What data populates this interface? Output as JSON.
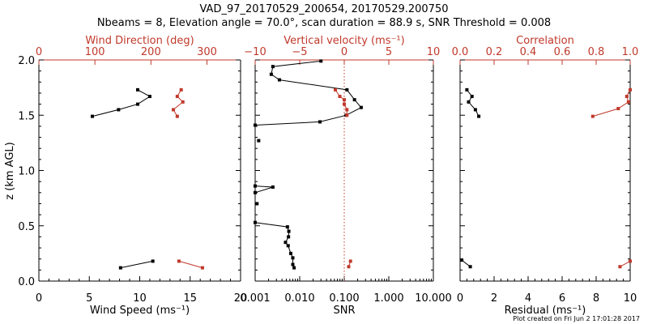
{
  "title_line1": "VAD_97_20170529_200654, 20170529.200750",
  "title_line2": "Nbeams = 8, Elevation angle = 70.0°, scan duration = 88.9 s, SNR Threshold = 0.008",
  "footer": "Plot created on Fri Jun  2 17:01:28 2017",
  "colors": {
    "primary": "#000000",
    "secondary": "#c0392b"
  },
  "chart_data": [
    {
      "type": "line",
      "title": "",
      "ylabel": "z (km AGL)",
      "ylim": [
        0,
        2
      ],
      "yticks": [
        "0.0",
        "0.5",
        "1.0",
        "1.5",
        "2.0"
      ],
      "xlabel": "Wind Speed (ms⁻¹)",
      "xlim": [
        0,
        20
      ],
      "xticks": [
        "0",
        "5",
        "10",
        "15",
        "20"
      ],
      "top_xlabel": "Wind Direction (deg)",
      "top_xlim": [
        0,
        360
      ],
      "top_xticks": [
        "0",
        "100",
        "200",
        "300"
      ],
      "series": [
        {
          "axis": "bottom",
          "color": "#000000",
          "segments": [
            {
              "x": [
                5.3,
                7.9,
                9.8,
                11.0,
                9.8
              ],
              "y": [
                1.49,
                1.55,
                1.6,
                1.67,
                1.73
              ]
            },
            {
              "x": [
                8.1,
                11.3
              ],
              "y": [
                0.12,
                0.18
              ]
            }
          ]
        },
        {
          "axis": "top",
          "color": "#c0392b",
          "segments": [
            {
              "x": [
                247,
                240,
                257,
                247,
                254
              ],
              "y": [
                1.49,
                1.55,
                1.62,
                1.67,
                1.73
              ]
            },
            {
              "x": [
                250,
                292
              ],
              "y": [
                0.18,
                0.12
              ]
            }
          ]
        }
      ]
    },
    {
      "type": "line",
      "title": "",
      "xlabel": "SNR",
      "xscale": "log",
      "xlim": [
        0.001,
        10
      ],
      "xticks": [
        "0.001",
        "0.010",
        "0.100",
        "1.000",
        "10.000"
      ],
      "top_xlabel": "Vertical velocity (ms⁻¹)",
      "top_xlim": [
        -10,
        10
      ],
      "top_xticks": [
        "−10",
        "−5",
        "0",
        "5",
        "10"
      ],
      "top_reference_line": 0,
      "ylim": [
        0,
        2
      ],
      "series": [
        {
          "axis": "bottom",
          "color": "#000000",
          "segments": [
            {
              "x": [
                0.03,
                0.0025,
                0.0023,
                0.0035,
                0.115,
                0.17,
                0.24,
                0.11,
                0.0285,
                0.001
              ],
              "y": [
                1.99,
                1.94,
                1.87,
                1.82,
                1.73,
                1.64,
                1.57,
                1.5,
                1.44,
                1.41
              ]
            },
            {
              "x": [
                0.0012
              ],
              "y": [
                1.27
              ]
            },
            {
              "x": [
                0.001,
                0.0025,
                0.001
              ],
              "y": [
                0.86,
                0.85,
                0.8
              ]
            },
            {
              "x": [
                0.0011
              ],
              "y": [
                0.7
              ]
            },
            {
              "x": [
                0.001,
                0.0053,
                0.0057,
                0.0056,
                0.0048,
                0.0055,
                0.0063,
                0.007,
                0.007,
                0.0075
              ],
              "y": [
                0.53,
                0.49,
                0.45,
                0.4,
                0.35,
                0.32,
                0.25,
                0.21,
                0.15,
                0.12
              ]
            }
          ]
        },
        {
          "axis": "top",
          "color": "#c0392b",
          "segments": [
            {
              "x": [
                -1.0,
                -0.5,
                0.0,
                0.0,
                0.3,
                0.3
              ],
              "y": [
                1.73,
                1.67,
                1.64,
                1.6,
                1.55,
                1.5
              ]
            },
            {
              "x": [
                0.7,
                0.5
              ],
              "y": [
                0.18,
                0.13
              ]
            }
          ]
        }
      ]
    },
    {
      "type": "line",
      "title": "",
      "xlabel": "Residual (ms⁻¹)",
      "xlim": [
        0,
        10
      ],
      "xticks": [
        "0",
        "2",
        "4",
        "6",
        "8",
        "10"
      ],
      "top_xlabel": "Correlation",
      "top_xlim": [
        0,
        1
      ],
      "top_xticks": [
        "0.0",
        "0.2",
        "0.4",
        "0.6",
        "0.8",
        "1.0"
      ],
      "ylim": [
        0,
        2
      ],
      "series": [
        {
          "axis": "bottom",
          "color": "#000000",
          "segments": [
            {
              "x": [
                0.4,
                0.7,
                0.5,
                0.9,
                1.1
              ],
              "y": [
                1.73,
                1.67,
                1.62,
                1.55,
                1.49
              ]
            },
            {
              "x": [
                0.1,
                0.6
              ],
              "y": [
                0.19,
                0.13
              ]
            }
          ]
        },
        {
          "axis": "top",
          "color": "#c0392b",
          "segments": [
            {
              "x": [
                1.0,
                0.98,
                0.99,
                0.93,
                0.78
              ],
              "y": [
                1.73,
                1.67,
                1.62,
                1.56,
                1.49
              ]
            },
            {
              "x": [
                1.0,
                0.94
              ],
              "y": [
                0.18,
                0.13
              ]
            }
          ]
        }
      ]
    }
  ]
}
